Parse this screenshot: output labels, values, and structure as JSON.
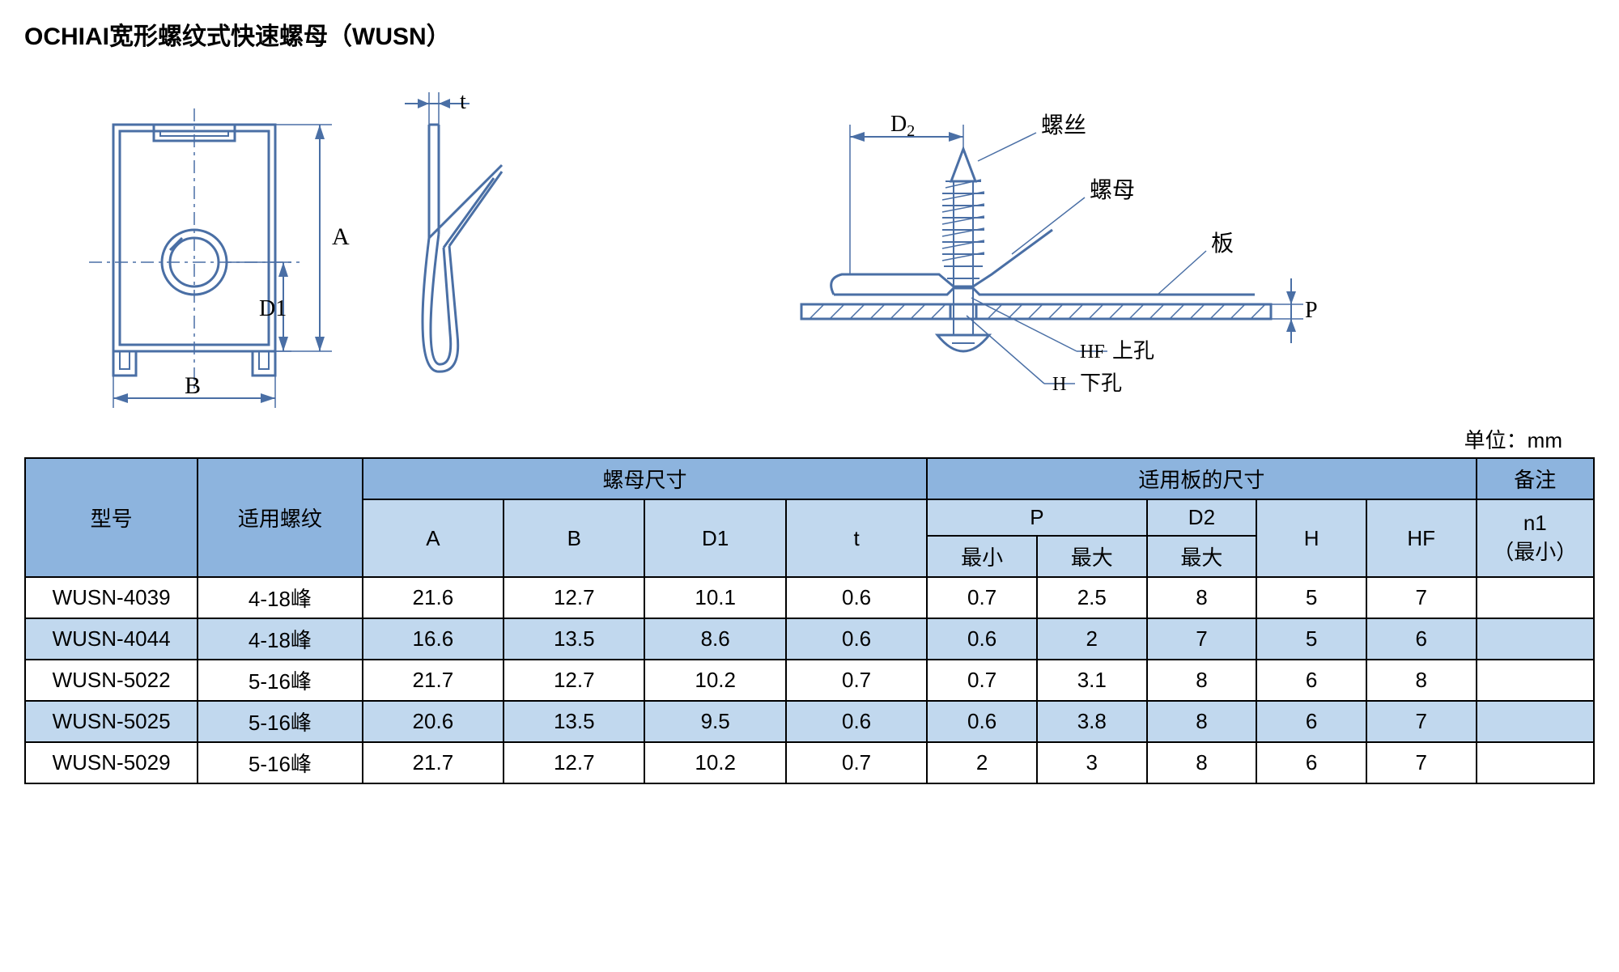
{
  "title": "OCHIAI宽形螺纹式快速螺母（WUSN）",
  "unit_label": "单位：mm",
  "diagram_labels": {
    "A": "A",
    "B": "B",
    "D1": "D1",
    "t": "t",
    "D2": "D2",
    "screw": "螺丝",
    "nut": "螺母",
    "plate": "板",
    "P": "P",
    "HF": "HF",
    "HF_cn": "上孔",
    "H": "H",
    "H_cn": "下孔"
  },
  "table": {
    "header": {
      "model": "型号",
      "thread": "适用螺纹",
      "nut_dims": "螺母尺寸",
      "plate_dims": "适用板的尺寸",
      "remark": "备注",
      "A": "A",
      "B": "B",
      "D1": "D1",
      "t": "t",
      "P": "P",
      "D2": "D2",
      "H": "H",
      "HF": "HF",
      "n1": "n1",
      "n1_sub": "（最小）",
      "min": "最小",
      "max": "最大"
    },
    "rows": [
      {
        "model": "WUSN-4039",
        "thread": "4-18峰",
        "A": "21.6",
        "B": "12.7",
        "D1": "10.1",
        "t": "0.6",
        "Pmin": "0.7",
        "Pmax": "2.5",
        "D2max": "8",
        "H": "5",
        "HF": "7",
        "n1": ""
      },
      {
        "model": "WUSN-4044",
        "thread": "4-18峰",
        "A": "16.6",
        "B": "13.5",
        "D1": "8.6",
        "t": "0.6",
        "Pmin": "0.6",
        "Pmax": "2",
        "D2max": "7",
        "H": "5",
        "HF": "6",
        "n1": ""
      },
      {
        "model": "WUSN-5022",
        "thread": "5-16峰",
        "A": "21.7",
        "B": "12.7",
        "D1": "10.2",
        "t": "0.7",
        "Pmin": "0.7",
        "Pmax": "3.1",
        "D2max": "8",
        "H": "6",
        "HF": "8",
        "n1": ""
      },
      {
        "model": "WUSN-5025",
        "thread": "5-16峰",
        "A": "20.6",
        "B": "13.5",
        "D1": "9.5",
        "t": "0.6",
        "Pmin": "0.6",
        "Pmax": "3.8",
        "D2max": "8",
        "H": "6",
        "HF": "7",
        "n1": ""
      },
      {
        "model": "WUSN-5029",
        "thread": "5-16峰",
        "A": "21.7",
        "B": "12.7",
        "D1": "10.2",
        "t": "0.7",
        "Pmin": "2",
        "Pmax": "3",
        "D2max": "8",
        "H": "6",
        "HF": "7",
        "n1": ""
      }
    ]
  },
  "colors": {
    "header_dark": "#8db4de",
    "header_light": "#c1d8ee",
    "row_alt": "#c1d8ee",
    "stroke": "#4a6fa5",
    "border": "#000000"
  },
  "column_widths_pct": [
    11,
    10.5,
    9,
    9,
    9,
    9,
    7,
    7,
    7,
    7,
    7,
    7.5
  ]
}
